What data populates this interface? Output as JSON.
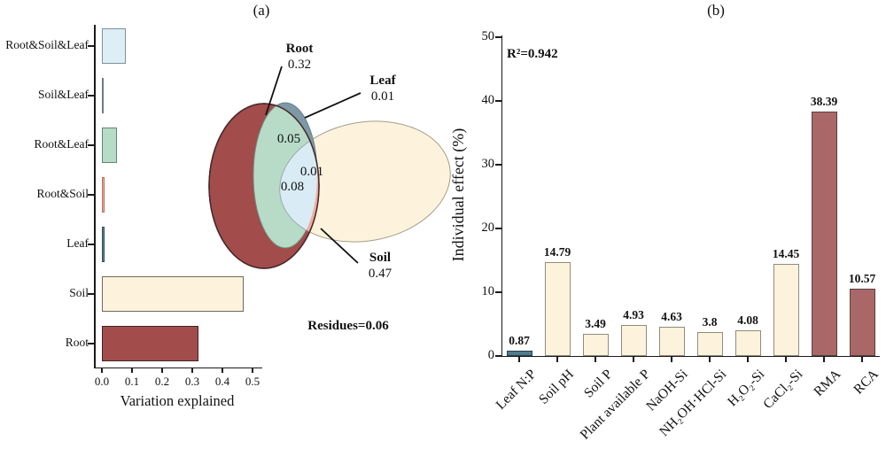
{
  "panels": {
    "a": "(a)",
    "b": "(b)"
  },
  "chart_data": [
    {
      "id": "variation-explained",
      "type": "bar",
      "orientation": "horizontal",
      "categories": [
        "Root&Soil&Leaf",
        "Soil&Leaf",
        "Root&Leaf",
        "Root&Soil",
        "Leaf",
        "Soil",
        "Root"
      ],
      "values": [
        0.08,
        0.005,
        0.05,
        0.01,
        0.01,
        0.47,
        0.32
      ],
      "bar_colors": [
        "#ddeef6",
        "#8b9298",
        "#b7dbc7",
        "#efad9c",
        "#5e838f",
        "#fdf3dc",
        "#a24c4c"
      ],
      "bar_borders": [
        "#7b909c",
        "#6f7a80",
        "#5f8875",
        "#b1705e",
        "#2f4f5c",
        "#6e6a5c",
        "#3f2525"
      ],
      "xlabel": "Variation explained",
      "x_ticks": [
        "0.0",
        "0.1",
        "0.2",
        "0.3",
        "0.4",
        "0.5"
      ],
      "xlim": [
        0,
        0.55
      ],
      "grid": false
    },
    {
      "id": "venn",
      "type": "venn",
      "sets": [
        {
          "label": "Root",
          "value": "0.32"
        },
        {
          "label": "Leaf",
          "value": "0.01"
        },
        {
          "label": "Soil",
          "value": "0.47"
        }
      ],
      "overlaps": [
        {
          "label": "Root & Leaf",
          "value": "0.05"
        },
        {
          "label": "Root & Soil",
          "value": "0.01"
        },
        {
          "label": "Root & Soil & Leaf",
          "value": "0.08"
        }
      ],
      "residues_label": "Residues=0.06",
      "colors": {
        "root": "#a24c4c",
        "soil": "#fdf3dc",
        "leaf": "#7e99a6",
        "root_leaf": "#b7dbc7",
        "root_soil": "#efad9c",
        "root_soil_leaf": "#d9ecf5"
      }
    },
    {
      "id": "individual-effect",
      "type": "bar",
      "orientation": "vertical",
      "categories": [
        "Leaf N:P",
        "Soil pH",
        "Soil P",
        "Plant available P",
        "NaOH-Si",
        "NH₂OH·HCl-Si",
        "H₂O₂-Si",
        "CaCl₂-Si",
        "RMA",
        "RCA"
      ],
      "values": [
        0.87,
        14.79,
        3.49,
        4.93,
        4.63,
        3.8,
        4.08,
        14.45,
        38.39,
        10.57
      ],
      "value_labels": [
        "0.87",
        "14.79",
        "3.49",
        "4.93",
        "4.63",
        "3.8",
        "4.08",
        "14.45",
        "38.39",
        "10.57"
      ],
      "bar_colors": [
        "#4f7b8d",
        "#fdf3dc",
        "#fdf3dc",
        "#fdf3dc",
        "#fdf3dc",
        "#fdf3dc",
        "#fdf3dc",
        "#fdf3dc",
        "#aa6767",
        "#aa6767"
      ],
      "bar_borders": [
        "#24404c",
        "#8f8c7c",
        "#8f8c7c",
        "#8f8c7c",
        "#8f8c7c",
        "#8f8c7c",
        "#8f8c7c",
        "#8f8c7c",
        "#57403f",
        "#57403f"
      ],
      "ylabel": "Individual effect (%)",
      "y_ticks": [
        "0",
        "10",
        "20",
        "30",
        "40",
        "50"
      ],
      "ylim": [
        0,
        50
      ],
      "annotation": "R²=0.942",
      "grid": false
    }
  ]
}
